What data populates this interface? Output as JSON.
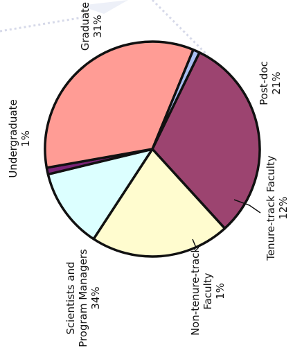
{
  "chart_data": {
    "type": "pie",
    "title": "",
    "rotated": "90deg-counterclockwise",
    "slices": [
      {
        "label": "Graduate",
        "percent_label": "31%",
        "value": 31,
        "color": "#9c4470"
      },
      {
        "label": "Post-doc",
        "percent_label": "21%",
        "value": 21,
        "color": "#fffccf"
      },
      {
        "label": "Tenure-track Faculty",
        "percent_label": "12%",
        "value": 12,
        "color": "#dcffff"
      },
      {
        "label": "Non-tenure-track Faculty",
        "percent_label": "1%",
        "value": 1,
        "color": "#7a2477"
      },
      {
        "label": "Scientists and Program Managers",
        "percent_label": "34%",
        "value": 34,
        "color": "#ff9c95"
      },
      {
        "label": "Undergraduate",
        "percent_label": "1%",
        "value": 1,
        "color": "#a9bff2"
      }
    ]
  }
}
